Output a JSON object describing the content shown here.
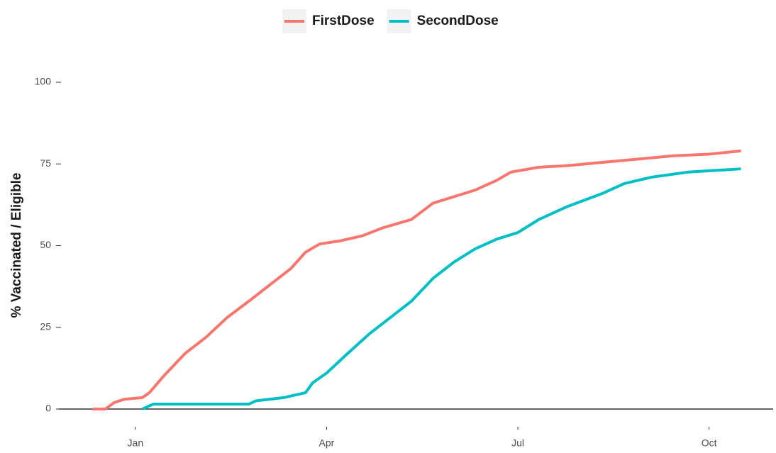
{
  "chart_data": {
    "type": "line",
    "y_label": "% Vaccinated / Eligible",
    "x": [
      0.33,
      0.53,
      0.67,
      0.83,
      1.11,
      1.22,
      1.44,
      1.78,
      2.11,
      2.44,
      2.78,
      3.11,
      3.44,
      3.67,
      3.89,
      4.22,
      4.56,
      4.89,
      5.33,
      5.67,
      6,
      6.33,
      6.67,
      6.89,
      7.33,
      7.78,
      8.33,
      8.89,
      9.44,
      10,
      10.5
    ],
    "series": [
      {
        "name": "FirstDose",
        "color": "#f8766d",
        "x": [
          0.33,
          0.53,
          0.67,
          0.83,
          1.11,
          1.22,
          1.44,
          1.78,
          2.11,
          2.44,
          2.78,
          3.11,
          3.44,
          3.67,
          3.89,
          4.22,
          4.56,
          4.89,
          5.33,
          5.67,
          6,
          6.33,
          6.67,
          6.89,
          7.33,
          7.78,
          8.33,
          8.89,
          9.44,
          10,
          10.5
        ],
        "values": [
          0,
          0,
          2,
          3,
          3.5,
          5,
          10,
          17,
          22,
          28,
          33,
          38,
          43,
          48,
          50.5,
          51.5,
          53,
          55.5,
          58,
          63,
          65,
          67,
          70,
          72.5,
          74,
          74.5,
          75.5,
          76.5,
          77.5,
          78,
          79
        ]
      },
      {
        "name": "SecondDose",
        "color": "#00bfc4",
        "x": [
          1.11,
          1.28,
          2.78,
          2.89,
          3.33,
          3.67,
          3.78,
          4,
          4.33,
          4.67,
          5,
          5.33,
          5.67,
          6,
          6.33,
          6.67,
          7,
          7.33,
          7.78,
          8.33,
          8.67,
          9.11,
          9.67,
          10.5
        ],
        "values": [
          0,
          1.5,
          1.5,
          2.5,
          3.5,
          5,
          8,
          11,
          17,
          23,
          28,
          33,
          40,
          45,
          49,
          52,
          54,
          58,
          62,
          66,
          69,
          71,
          72.5,
          73.5
        ]
      }
    ],
    "xlim": [
      -0.2,
      11.05
    ],
    "xticks": [
      {
        "value": 1,
        "label": "Jan"
      },
      {
        "value": 4,
        "label": "Apr"
      },
      {
        "value": 7,
        "label": "Jul"
      },
      {
        "value": 10,
        "label": "Oct"
      }
    ],
    "ylim": [
      -5,
      105
    ],
    "yticks": [
      0,
      25,
      50,
      75,
      100
    ],
    "legend": "top",
    "grid": false
  }
}
